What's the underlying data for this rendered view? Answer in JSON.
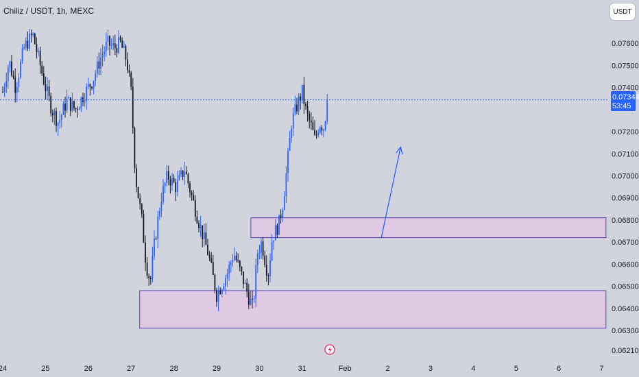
{
  "header": {
    "title": "Chiliz / USDT, 1h, MEXC",
    "currency_button": "USDT"
  },
  "price_badge": {
    "price": "0.07344",
    "countdown": "53:45"
  },
  "colors": {
    "background": "#d1d4dc",
    "up": "#2962ff",
    "down": "#131722",
    "zone_fill": "#e0c9e3",
    "zone_border": "#5b3fb3",
    "price_line": "#2962ff",
    "badge": "#2962ff"
  },
  "chart_data": {
    "type": "candlestick",
    "symbol": "Chiliz / USDT",
    "interval": "1h",
    "exchange": "MEXC",
    "ylim": [
      0.0621,
      0.0772
    ],
    "y_ticks": [
      "0.07600",
      "0.07500",
      "0.07400",
      "0.07200",
      "0.07100",
      "0.07000",
      "0.06900",
      "0.06800",
      "0.06700",
      "0.06600",
      "0.06500",
      "0.06400",
      "0.06300",
      "0.06210"
    ],
    "y_tick_values": [
      0.076,
      0.075,
      0.074,
      0.072,
      0.071,
      0.07,
      0.069,
      0.068,
      0.067,
      0.066,
      0.065,
      0.064,
      0.063,
      0.0621
    ],
    "x_ticks": [
      "24",
      "25",
      "26",
      "27",
      "28",
      "29",
      "30",
      "31",
      "Feb",
      "2",
      "3",
      "4",
      "5",
      "6",
      "7"
    ],
    "x_tick_days": [
      0,
      1,
      2,
      3,
      4,
      5,
      6,
      7,
      8,
      9,
      10,
      11,
      12,
      13,
      14
    ],
    "last_price": 0.07344,
    "path_points": [
      [
        0.0,
        0.0738
      ],
      [
        0.15,
        0.0752
      ],
      [
        0.3,
        0.074
      ],
      [
        0.5,
        0.0758
      ],
      [
        0.7,
        0.0764
      ],
      [
        0.85,
        0.0752
      ],
      [
        1.0,
        0.074
      ],
      [
        1.15,
        0.073
      ],
      [
        1.3,
        0.0724
      ],
      [
        1.5,
        0.0734
      ],
      [
        1.7,
        0.073
      ],
      [
        1.9,
        0.0737
      ],
      [
        2.1,
        0.0743
      ],
      [
        2.3,
        0.0754
      ],
      [
        2.45,
        0.076
      ],
      [
        2.6,
        0.0758
      ],
      [
        2.75,
        0.076
      ],
      [
        2.9,
        0.0752
      ],
      [
        3.0,
        0.0738
      ],
      [
        3.1,
        0.07
      ],
      [
        3.25,
        0.068
      ],
      [
        3.35,
        0.066
      ],
      [
        3.45,
        0.0652
      ],
      [
        3.55,
        0.067
      ],
      [
        3.7,
        0.069
      ],
      [
        3.85,
        0.07
      ],
      [
        4.05,
        0.0695
      ],
      [
        4.25,
        0.0703
      ],
      [
        4.4,
        0.0692
      ],
      [
        4.6,
        0.0678
      ],
      [
        4.8,
        0.0665
      ],
      [
        5.0,
        0.0646
      ],
      [
        5.1,
        0.065
      ],
      [
        5.25,
        0.0656
      ],
      [
        5.4,
        0.0665
      ],
      [
        5.6,
        0.0654
      ],
      [
        5.75,
        0.0645
      ],
      [
        5.85,
        0.064
      ],
      [
        5.95,
        0.0665
      ],
      [
        6.05,
        0.067
      ],
      [
        6.2,
        0.0655
      ],
      [
        6.3,
        0.0672
      ],
      [
        6.45,
        0.0678
      ],
      [
        6.55,
        0.0688
      ],
      [
        6.65,
        0.0705
      ],
      [
        6.75,
        0.0724
      ],
      [
        6.9,
        0.0733
      ],
      [
        7.0,
        0.0738
      ],
      [
        7.1,
        0.0728
      ],
      [
        7.2,
        0.0723
      ],
      [
        7.3,
        0.0716
      ],
      [
        7.4,
        0.0724
      ],
      [
        7.5,
        0.0722
      ],
      [
        7.6,
        0.0734
      ]
    ],
    "zones": [
      {
        "name": "upper-zone",
        "day_start": 5.8,
        "day_end": 14.1,
        "price_low": 0.0672,
        "price_high": 0.0681
      },
      {
        "name": "lower-zone",
        "day_start": 3.2,
        "day_end": 14.1,
        "price_low": 0.0631,
        "price_high": 0.0648
      }
    ],
    "arrow": {
      "from": [
        8.85,
        0.0672
      ],
      "to": [
        9.3,
        0.0713
      ]
    }
  }
}
